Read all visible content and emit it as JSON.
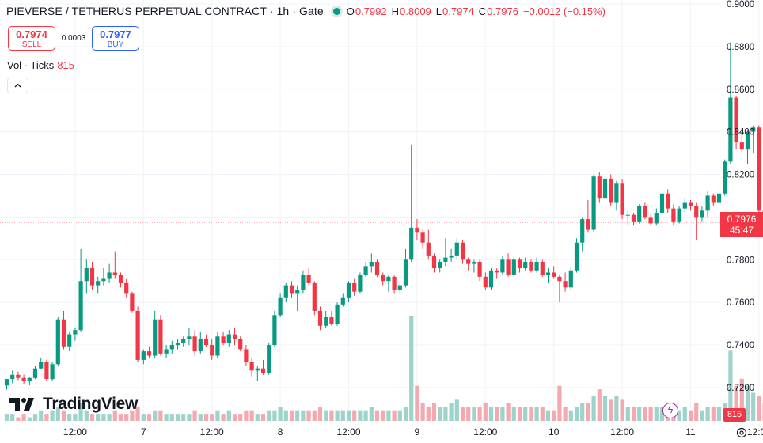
{
  "header": {
    "title": "PIEVERSE / TETHERUS PERPETUAL CONTRACT · 1h · Gate",
    "ohlc": [
      {
        "label": "O",
        "value": "0.7992"
      },
      {
        "label": "H",
        "value": "0.8009"
      },
      {
        "label": "L",
        "value": "0.7974"
      },
      {
        "label": "C",
        "value": "0.7976"
      }
    ],
    "change": "−0.0012 (−0.15%)"
  },
  "trade": {
    "sell_price": "0.7974",
    "sell_label": "SELL",
    "spread": "0.0003",
    "buy_price": "0.7977",
    "buy_label": "BUY"
  },
  "volume_legend": {
    "label": "Vol · Ticks",
    "value": "815"
  },
  "logo": {
    "text": "TradingView"
  },
  "price_tag": {
    "price": "0.7976",
    "countdown": "45:47"
  },
  "volume_tag": "815",
  "colors": {
    "up": "#089981",
    "down": "#f23645",
    "up_vol": "#9dd3cb",
    "down_vol": "#f4a9ae",
    "grid": "#f0f3fa"
  },
  "icons": {
    "collapse": "chevron-up-icon",
    "flash": "lightning-icon",
    "settings": "gear-icon",
    "logo": "tradingview-logo-icon"
  },
  "chart_data": {
    "type": "candlestick",
    "y_ticks": [
      "0.9000",
      "0.8800",
      "0.8600",
      "0.8400",
      "0.8200",
      "0.8000",
      "0.7800",
      "0.7600",
      "0.7400",
      "0.7200"
    ],
    "ylim": [
      0.7055,
      0.9
    ],
    "x_ticks": [
      {
        "label": "12:00",
        "bar": 12
      },
      {
        "label": "7",
        "bar": 24
      },
      {
        "label": "12:00",
        "bar": 36
      },
      {
        "label": "8",
        "bar": 48
      },
      {
        "label": "12:00",
        "bar": 60
      },
      {
        "label": "9",
        "bar": 72
      },
      {
        "label": "12:00",
        "bar": 84
      },
      {
        "label": "10",
        "bar": 96
      },
      {
        "label": "12:00",
        "bar": 108
      },
      {
        "label": "11",
        "bar": 120
      },
      {
        "label": "12:00",
        "bar": 132
      },
      {
        "label": "12",
        "bar": 144
      }
    ],
    "last_price": 0.7976,
    "candles": [
      [
        0.721,
        0.724,
        0.719,
        0.724,
        2
      ],
      [
        0.724,
        0.728,
        0.722,
        0.726,
        2
      ],
      [
        0.726,
        0.7275,
        0.7235,
        0.7245,
        1
      ],
      [
        0.7245,
        0.726,
        0.7215,
        0.723,
        2
      ],
      [
        0.723,
        0.725,
        0.721,
        0.7245,
        1
      ],
      [
        0.7245,
        0.73,
        0.724,
        0.729,
        2
      ],
      [
        0.729,
        0.734,
        0.7285,
        0.732,
        3
      ],
      [
        0.732,
        0.733,
        0.723,
        0.724,
        2
      ],
      [
        0.724,
        0.732,
        0.723,
        0.731,
        3
      ],
      [
        0.731,
        0.753,
        0.73,
        0.752,
        4
      ],
      [
        0.752,
        0.756,
        0.738,
        0.739,
        3
      ],
      [
        0.739,
        0.746,
        0.737,
        0.745,
        2
      ],
      [
        0.745,
        0.748,
        0.742,
        0.747,
        2
      ],
      [
        0.747,
        0.785,
        0.746,
        0.77,
        5
      ],
      [
        0.77,
        0.78,
        0.764,
        0.776,
        3
      ],
      [
        0.776,
        0.779,
        0.766,
        0.768,
        2
      ],
      [
        0.768,
        0.772,
        0.764,
        0.77,
        2
      ],
      [
        0.77,
        0.776,
        0.768,
        0.771,
        2
      ],
      [
        0.771,
        0.778,
        0.769,
        0.774,
        2
      ],
      [
        0.774,
        0.784,
        0.771,
        0.773,
        3
      ],
      [
        0.773,
        0.774,
        0.767,
        0.769,
        2
      ],
      [
        0.769,
        0.771,
        0.762,
        0.764,
        2
      ],
      [
        0.764,
        0.765,
        0.755,
        0.756,
        3
      ],
      [
        0.756,
        0.758,
        0.732,
        0.733,
        4
      ],
      [
        0.733,
        0.738,
        0.731,
        0.737,
        2
      ],
      [
        0.737,
        0.739,
        0.734,
        0.735,
        2
      ],
      [
        0.735,
        0.756,
        0.734,
        0.752,
        3
      ],
      [
        0.752,
        0.754,
        0.735,
        0.736,
        3
      ],
      [
        0.736,
        0.74,
        0.734,
        0.738,
        2
      ],
      [
        0.738,
        0.742,
        0.736,
        0.74,
        2
      ],
      [
        0.74,
        0.743,
        0.738,
        0.741,
        2
      ],
      [
        0.741,
        0.744,
        0.739,
        0.743,
        2
      ],
      [
        0.743,
        0.748,
        0.74,
        0.744,
        2
      ],
      [
        0.744,
        0.747,
        0.735,
        0.737,
        3
      ],
      [
        0.737,
        0.746,
        0.736,
        0.743,
        2
      ],
      [
        0.743,
        0.745,
        0.739,
        0.74,
        2
      ],
      [
        0.74,
        0.743,
        0.733,
        0.735,
        2
      ],
      [
        0.735,
        0.746,
        0.734,
        0.744,
        3
      ],
      [
        0.744,
        0.746,
        0.74,
        0.741,
        2
      ],
      [
        0.741,
        0.747,
        0.739,
        0.745,
        3
      ],
      [
        0.745,
        0.748,
        0.74,
        0.743,
        2
      ],
      [
        0.743,
        0.744,
        0.737,
        0.738,
        2
      ],
      [
        0.738,
        0.74,
        0.73,
        0.732,
        3
      ],
      [
        0.732,
        0.734,
        0.725,
        0.728,
        3
      ],
      [
        0.728,
        0.73,
        0.723,
        0.729,
        2
      ],
      [
        0.729,
        0.733,
        0.726,
        0.727,
        2
      ],
      [
        0.727,
        0.741,
        0.726,
        0.74,
        3
      ],
      [
        0.74,
        0.756,
        0.739,
        0.754,
        3
      ],
      [
        0.754,
        0.764,
        0.753,
        0.762,
        4
      ],
      [
        0.762,
        0.769,
        0.76,
        0.768,
        3
      ],
      [
        0.768,
        0.77,
        0.762,
        0.764,
        3
      ],
      [
        0.764,
        0.768,
        0.756,
        0.766,
        3
      ],
      [
        0.766,
        0.775,
        0.764,
        0.773,
        3
      ],
      [
        0.773,
        0.776,
        0.768,
        0.769,
        3
      ],
      [
        0.769,
        0.77,
        0.754,
        0.756,
        3
      ],
      [
        0.756,
        0.758,
        0.747,
        0.749,
        4
      ],
      [
        0.749,
        0.756,
        0.748,
        0.753,
        3
      ],
      [
        0.753,
        0.756,
        0.749,
        0.75,
        3
      ],
      [
        0.75,
        0.76,
        0.749,
        0.759,
        3
      ],
      [
        0.759,
        0.764,
        0.758,
        0.762,
        3
      ],
      [
        0.762,
        0.77,
        0.76,
        0.769,
        3
      ],
      [
        0.769,
        0.771,
        0.763,
        0.765,
        3
      ],
      [
        0.765,
        0.774,
        0.764,
        0.773,
        3
      ],
      [
        0.773,
        0.779,
        0.772,
        0.777,
        3
      ],
      [
        0.777,
        0.783,
        0.774,
        0.779,
        4
      ],
      [
        0.779,
        0.78,
        0.772,
        0.773,
        3
      ],
      [
        0.773,
        0.774,
        0.768,
        0.77,
        3
      ],
      [
        0.77,
        0.773,
        0.765,
        0.772,
        3
      ],
      [
        0.772,
        0.773,
        0.764,
        0.766,
        3
      ],
      [
        0.766,
        0.769,
        0.764,
        0.768,
        3
      ],
      [
        0.768,
        0.785,
        0.767,
        0.78,
        4
      ],
      [
        0.78,
        0.834,
        0.779,
        0.795,
        30
      ],
      [
        0.795,
        0.799,
        0.789,
        0.793,
        10
      ],
      [
        0.793,
        0.794,
        0.785,
        0.788,
        5
      ],
      [
        0.788,
        0.794,
        0.78,
        0.782,
        4
      ],
      [
        0.782,
        0.783,
        0.774,
        0.776,
        5
      ],
      [
        0.776,
        0.78,
        0.774,
        0.779,
        4
      ],
      [
        0.779,
        0.79,
        0.777,
        0.781,
        4
      ],
      [
        0.781,
        0.785,
        0.779,
        0.782,
        5
      ],
      [
        0.782,
        0.79,
        0.78,
        0.788,
        6
      ],
      [
        0.788,
        0.789,
        0.778,
        0.78,
        4
      ],
      [
        0.78,
        0.781,
        0.775,
        0.778,
        4
      ],
      [
        0.778,
        0.78,
        0.774,
        0.779,
        4
      ],
      [
        0.779,
        0.78,
        0.77,
        0.772,
        4
      ],
      [
        0.772,
        0.774,
        0.766,
        0.767,
        5
      ],
      [
        0.767,
        0.776,
        0.766,
        0.775,
        4
      ],
      [
        0.775,
        0.776,
        0.771,
        0.774,
        4
      ],
      [
        0.774,
        0.782,
        0.773,
        0.78,
        4
      ],
      [
        0.78,
        0.783,
        0.772,
        0.773,
        5
      ],
      [
        0.773,
        0.781,
        0.772,
        0.78,
        4
      ],
      [
        0.78,
        0.781,
        0.774,
        0.776,
        4
      ],
      [
        0.776,
        0.781,
        0.775,
        0.779,
        4
      ],
      [
        0.779,
        0.78,
        0.774,
        0.775,
        4
      ],
      [
        0.775,
        0.781,
        0.774,
        0.779,
        4
      ],
      [
        0.779,
        0.78,
        0.772,
        0.773,
        4
      ],
      [
        0.773,
        0.776,
        0.769,
        0.774,
        3
      ],
      [
        0.774,
        0.777,
        0.771,
        0.772,
        3
      ],
      [
        0.772,
        0.773,
        0.76,
        0.77,
        10
      ],
      [
        0.77,
        0.774,
        0.765,
        0.767,
        4
      ],
      [
        0.767,
        0.777,
        0.766,
        0.775,
        3
      ],
      [
        0.775,
        0.79,
        0.774,
        0.788,
        4
      ],
      [
        0.788,
        0.8,
        0.784,
        0.799,
        5
      ],
      [
        0.799,
        0.808,
        0.793,
        0.794,
        5
      ],
      [
        0.794,
        0.82,
        0.793,
        0.819,
        7
      ],
      [
        0.819,
        0.821,
        0.807,
        0.809,
        9
      ],
      [
        0.809,
        0.822,
        0.806,
        0.818,
        7
      ],
      [
        0.818,
        0.82,
        0.805,
        0.807,
        6
      ],
      [
        0.807,
        0.817,
        0.803,
        0.816,
        7
      ],
      [
        0.816,
        0.818,
        0.799,
        0.801,
        6
      ],
      [
        0.801,
        0.803,
        0.796,
        0.801,
        4
      ],
      [
        0.801,
        0.802,
        0.796,
        0.798,
        4
      ],
      [
        0.798,
        0.806,
        0.797,
        0.805,
        4
      ],
      [
        0.805,
        0.807,
        0.799,
        0.8,
        4
      ],
      [
        0.8,
        0.801,
        0.796,
        0.797,
        4
      ],
      [
        0.797,
        0.804,
        0.796,
        0.802,
        4
      ],
      [
        0.802,
        0.812,
        0.8,
        0.811,
        4
      ],
      [
        0.811,
        0.813,
        0.802,
        0.804,
        4
      ],
      [
        0.804,
        0.806,
        0.796,
        0.798,
        3
      ],
      [
        0.798,
        0.805,
        0.797,
        0.804,
        3
      ],
      [
        0.804,
        0.809,
        0.802,
        0.807,
        4
      ],
      [
        0.807,
        0.808,
        0.803,
        0.805,
        3
      ],
      [
        0.805,
        0.807,
        0.789,
        0.8,
        5
      ],
      [
        0.8,
        0.805,
        0.798,
        0.803,
        3
      ],
      [
        0.803,
        0.812,
        0.8,
        0.81,
        4
      ],
      [
        0.81,
        0.811,
        0.805,
        0.807,
        4
      ],
      [
        0.807,
        0.812,
        0.798,
        0.811,
        4
      ],
      [
        0.811,
        0.827,
        0.81,
        0.826,
        5
      ],
      [
        0.826,
        0.882,
        0.825,
        0.856,
        20
      ],
      [
        0.856,
        0.857,
        0.832,
        0.835,
        10
      ],
      [
        0.835,
        0.842,
        0.83,
        0.832,
        12
      ],
      [
        0.832,
        0.841,
        0.825,
        0.84,
        10
      ],
      [
        0.84,
        0.843,
        0.83,
        0.842,
        8
      ],
      [
        0.842,
        0.843,
        0.801,
        0.803,
        7
      ],
      [
        0.803,
        0.804,
        0.796,
        0.798,
        5
      ],
      [
        0.798,
        0.8,
        0.795,
        0.797,
        4
      ],
      [
        0.797,
        0.799,
        0.792,
        0.795,
        3
      ],
      [
        0.795,
        0.8,
        0.788,
        0.79,
        4
      ],
      [
        0.79,
        0.795,
        0.788,
        0.794,
        3
      ],
      [
        0.794,
        0.805,
        0.792,
        0.803,
        3
      ],
      [
        0.803,
        0.806,
        0.798,
        0.801,
        3
      ],
      [
        0.801,
        0.802,
        0.795,
        0.796,
        4
      ],
      [
        0.796,
        0.797,
        0.789,
        0.79,
        3
      ],
      [
        0.79,
        0.795,
        0.788,
        0.793,
        3
      ],
      [
        0.793,
        0.8,
        0.792,
        0.798,
        3
      ],
      [
        0.798,
        0.807,
        0.797,
        0.805,
        4
      ],
      [
        0.805,
        0.818,
        0.803,
        0.808,
        3
      ],
      [
        0.808,
        0.812,
        0.8,
        0.804,
        3
      ],
      [
        0.804,
        0.809,
        0.799,
        0.8,
        3
      ],
      [
        0.8,
        0.81,
        0.799,
        0.809,
        3
      ],
      [
        0.809,
        0.812,
        0.804,
        0.808,
        3
      ],
      [
        0.808,
        0.811,
        0.8,
        0.801,
        3
      ],
      [
        0.801,
        0.802,
        0.797,
        0.799,
        2
      ],
      [
        0.7992,
        0.8009,
        0.7974,
        0.7976,
        2
      ]
    ]
  }
}
